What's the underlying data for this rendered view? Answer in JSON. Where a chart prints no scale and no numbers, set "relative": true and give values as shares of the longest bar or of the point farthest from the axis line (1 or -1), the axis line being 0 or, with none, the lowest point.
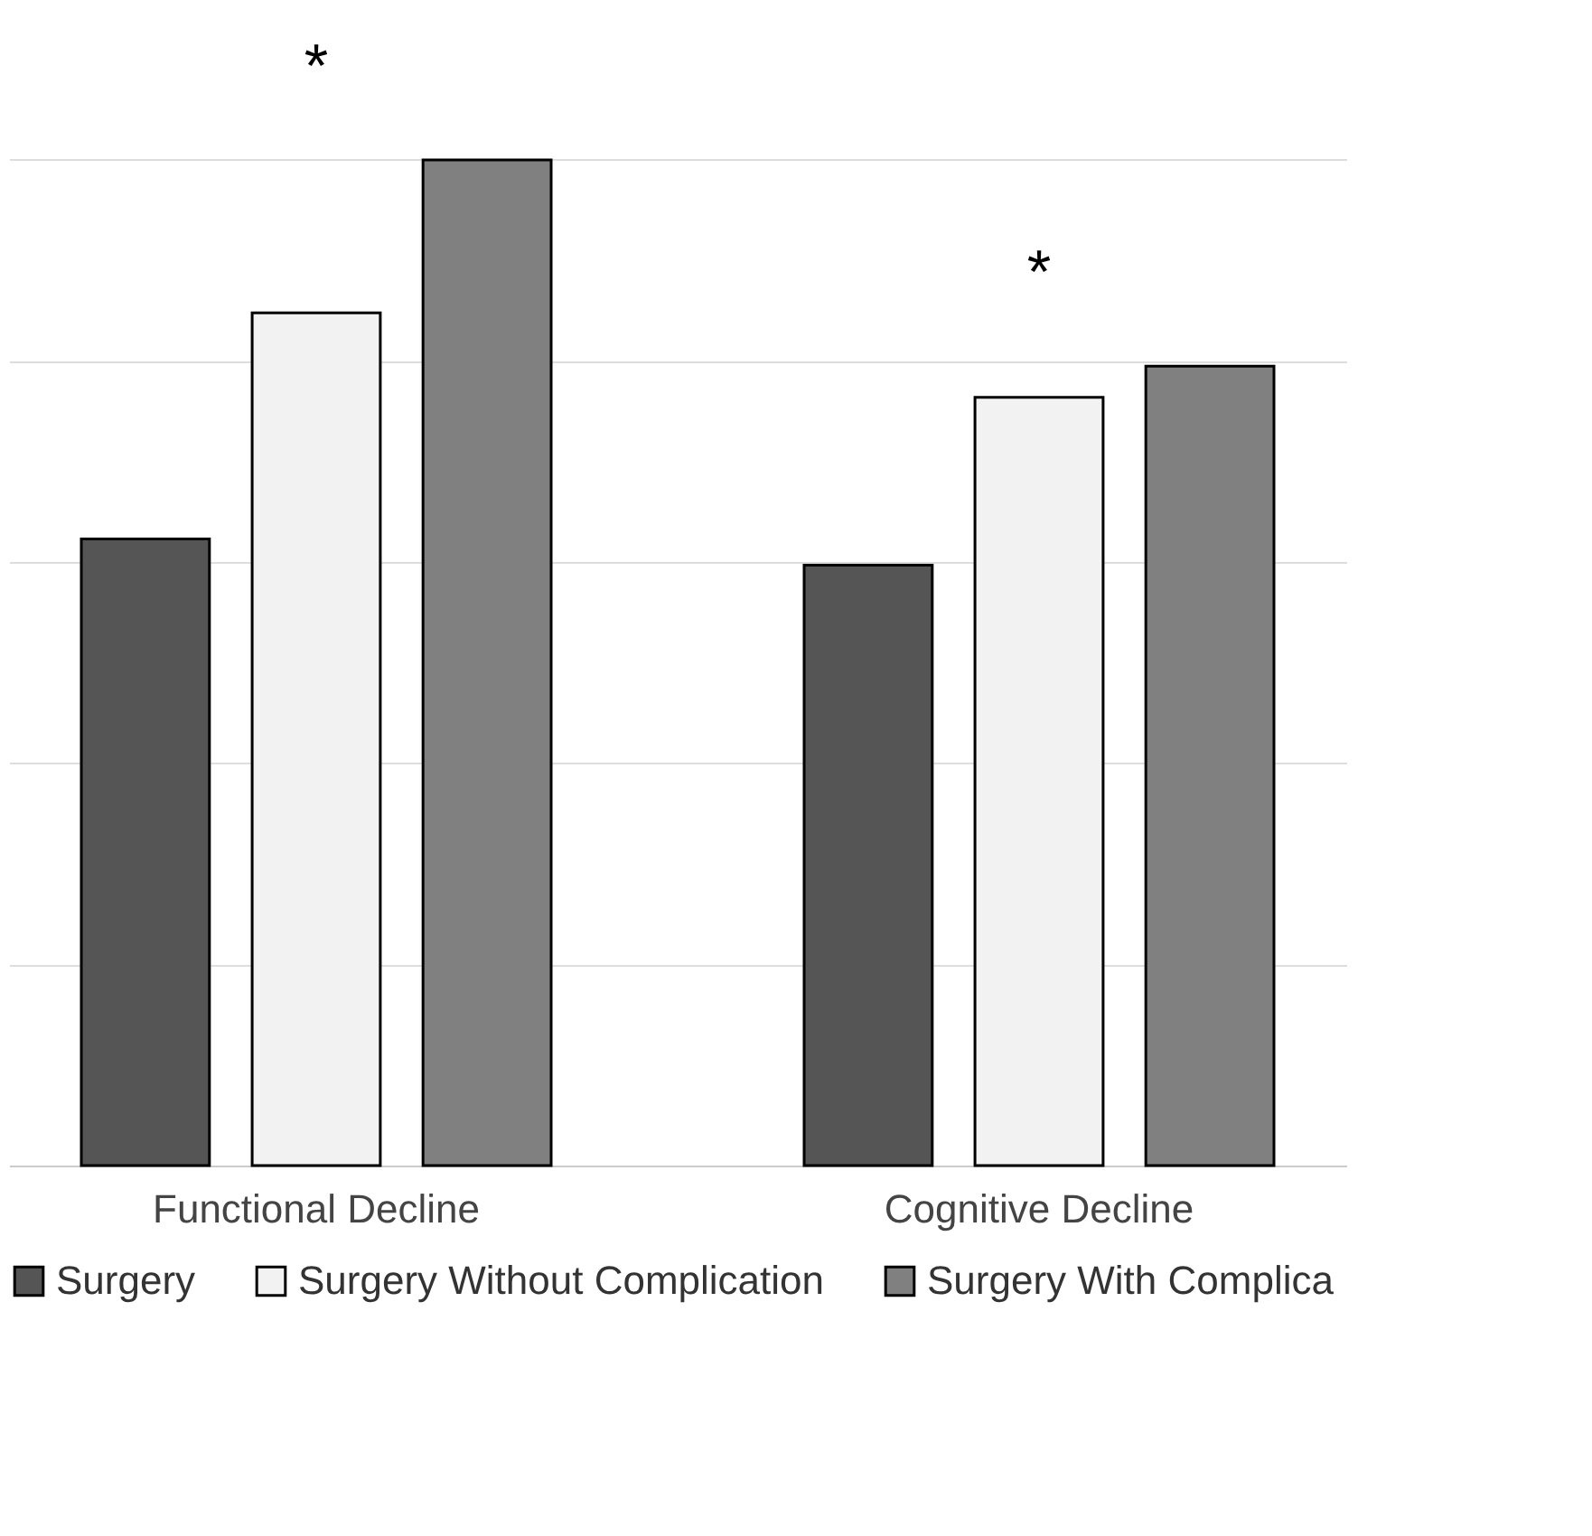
{
  "chart_data": {
    "type": "bar",
    "relative": true,
    "categories": [
      "Functional Decline",
      "Cognitive Decline"
    ],
    "series": [
      {
        "name": "Surgery",
        "color": "#555555",
        "values": [
          0.623,
          0.597
        ]
      },
      {
        "name": "Surgery Without Complication",
        "color": "#f2f2f2",
        "values": [
          0.848,
          0.764
        ]
      },
      {
        "name": "Surgery With Complica",
        "color": "#808080",
        "values": [
          1.0,
          0.795
        ]
      }
    ],
    "annotations": [
      "*",
      "*"
    ],
    "grid": "y",
    "legend": "bottom"
  }
}
